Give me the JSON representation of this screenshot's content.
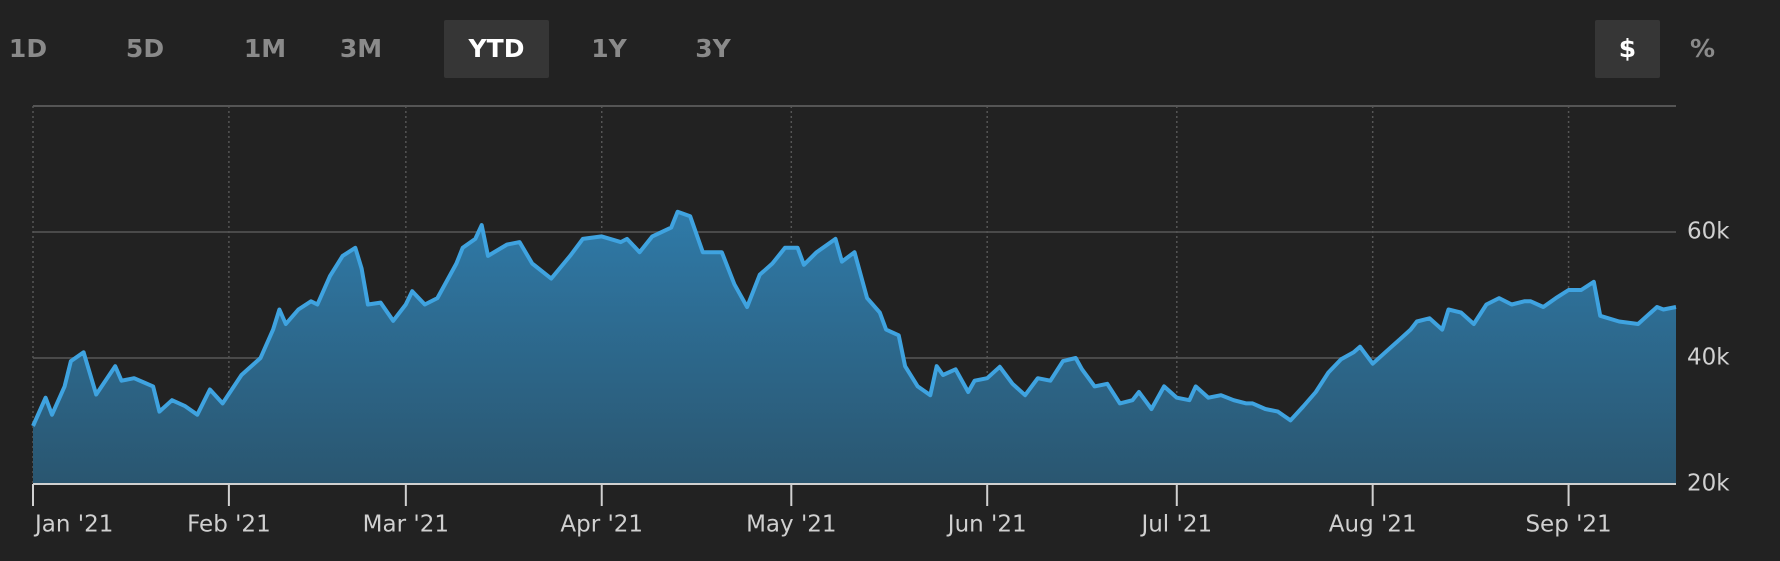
{
  "range_buttons": [
    "1D",
    "5D",
    "1M",
    "3M",
    "YTD",
    "1Y",
    "3Y"
  ],
  "active_range": "YTD",
  "unit_buttons": [
    "$",
    "%"
  ],
  "active_unit": "$",
  "chart_data": {
    "type": "area",
    "color": "#3fa3e0",
    "fill_top": "#2f7aa8",
    "fill_bottom": "#2a5670",
    "grid": true,
    "x": [
      0,
      2,
      3,
      5,
      6,
      8,
      10,
      13,
      14,
      16,
      19,
      20,
      22,
      24,
      26,
      28,
      30,
      33,
      34,
      36,
      38,
      39,
      40,
      42,
      44,
      45,
      47,
      49,
      51,
      52,
      53,
      55,
      57,
      59,
      60,
      62,
      64,
      67,
      68,
      70,
      71,
      72,
      75,
      77,
      79,
      82,
      85,
      87,
      90,
      93,
      94,
      96,
      98,
      101,
      102,
      104,
      106,
      109,
      111,
      113,
      115,
      117,
      119,
      121,
      122,
      124,
      127,
      128,
      130,
      132,
      134,
      135,
      137,
      138,
      140,
      142,
      143,
      144,
      146,
      148,
      149,
      151,
      153,
      155,
      157,
      159,
      161,
      163,
      165,
      166,
      168,
      170,
      172,
      174,
      175,
      177,
      179,
      181,
      183,
      184,
      186,
      188,
      190,
      192,
      193,
      195,
      197,
      199,
      201,
      203,
      205,
      207,
      209,
      210,
      212,
      214,
      216,
      218,
      219,
      221,
      223,
      224,
      226,
      228,
      230,
      232,
      234,
      236,
      237,
      239,
      241,
      243,
      245,
      247,
      248,
      251,
      254,
      257,
      258,
      260
    ],
    "values": [
      29200,
      33700,
      31000,
      35500,
      39500,
      40900,
      34200,
      38700,
      36400,
      36800,
      35500,
      31500,
      33300,
      32400,
      31000,
      35000,
      32800,
      37300,
      38200,
      40000,
      44500,
      47700,
      45400,
      47700,
      49000,
      48500,
      53000,
      56200,
      57500,
      54200,
      48500,
      48800,
      45900,
      48500,
      50600,
      48500,
      49500,
      55000,
      57500,
      58900,
      61100,
      56200,
      58000,
      58400,
      55000,
      52600,
      56200,
      58900,
      59300,
      58400,
      58900,
      56800,
      59300,
      60700,
      63200,
      62500,
      56800,
      56800,
      51700,
      48100,
      53200,
      55000,
      57500,
      57500,
      54800,
      56800,
      58900,
      55300,
      56800,
      49500,
      47200,
      44500,
      43600,
      38700,
      35500,
      34100,
      38700,
      37300,
      38200,
      34600,
      36400,
      36800,
      38600,
      35900,
      34100,
      36800,
      36400,
      39500,
      40000,
      38200,
      35500,
      35900,
      32800,
      33300,
      34600,
      31900,
      35500,
      33700,
      33300,
      35500,
      33700,
      34100,
      33300,
      32800,
      32800,
      31900,
      31500,
      30100,
      32300,
      34600,
      37700,
      39800,
      40900,
      41800,
      39100,
      40900,
      42700,
      44500,
      45800,
      46300,
      44500,
      47700,
      47200,
      45400,
      48500,
      49500,
      48500,
      49000,
      49000,
      48100,
      49500,
      50800,
      50800,
      52100,
      46700,
      45800,
      45400,
      48100,
      47700,
      48100
    ],
    "xlim": [
      0,
      260
    ],
    "xticks": [
      {
        "value": 0,
        "label": "Jan '21"
      },
      {
        "value": 31,
        "label": "Feb '21"
      },
      {
        "value": 59,
        "label": "Mar '21"
      },
      {
        "value": 90,
        "label": "Apr '21"
      },
      {
        "value": 120,
        "label": "May '21"
      },
      {
        "value": 151,
        "label": "Jun '21"
      },
      {
        "value": 181,
        "label": "Jul '21"
      },
      {
        "value": 212,
        "label": "Aug '21"
      },
      {
        "value": 243,
        "label": "Sep '21"
      }
    ],
    "ylim": [
      20000,
      80000
    ],
    "yticks": [
      {
        "value": 20000,
        "label": "20k"
      },
      {
        "value": 40000,
        "label": "40k"
      },
      {
        "value": 60000,
        "label": "60k"
      }
    ]
  }
}
